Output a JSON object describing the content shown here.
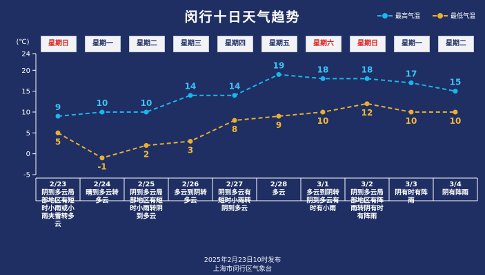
{
  "chart_data": {
    "type": "line",
    "title": "闵行十日天气趋势",
    "ylabel": "(℃)",
    "ylim": [
      -5,
      24
    ],
    "yticks": [
      -5,
      0,
      5,
      10,
      15,
      20,
      24
    ],
    "categories": [
      "2/23",
      "2/24",
      "2/25",
      "2/26",
      "2/27",
      "2/28",
      "3/1",
      "3/2",
      "3/3",
      "3/4"
    ],
    "weekdays": [
      "星期日",
      "星期一",
      "星期二",
      "星期三",
      "星期四",
      "星期五",
      "星期六",
      "星期日",
      "星期一",
      "星期二"
    ],
    "weekend": [
      true,
      false,
      false,
      false,
      false,
      false,
      true,
      true,
      false,
      false
    ],
    "conditions": [
      "阴到多云局部地区有短时小雨或小雨夹雪转多云",
      "晴到多云转多云",
      "阴到多云局部地区有短时小雨转阴到多云",
      "多云到阴转多云",
      "阴到多云有短时小雨转阴到多云",
      "多云",
      "多云到阴转阴到多云有时有小雨",
      "阴到多云局部地区有阵雨转阴有时有阵雨",
      "阴有时有阵雨",
      "阴有阵雨"
    ],
    "series": [
      {
        "name": "最高气温",
        "color": "#1ab6f0",
        "label_color": "#3cc3f5",
        "values": [
          9,
          10,
          10,
          14,
          14,
          19,
          18,
          18,
          17,
          15
        ]
      },
      {
        "name": "最低气温",
        "color": "#e8b033",
        "label_color": "#f0b93a",
        "values": [
          5,
          -1,
          2,
          3,
          8,
          9,
          10,
          12,
          10,
          10
        ]
      }
    ],
    "grid": false,
    "legend_position": "top-right"
  },
  "footer": {
    "line1": "2025年2月23日10时发布",
    "line2": "上海市闵行区气象台"
  },
  "colors": {
    "background": "#1f2f63",
    "weekend_text": "#e0201b",
    "weekday_text": "#1f2f63"
  }
}
